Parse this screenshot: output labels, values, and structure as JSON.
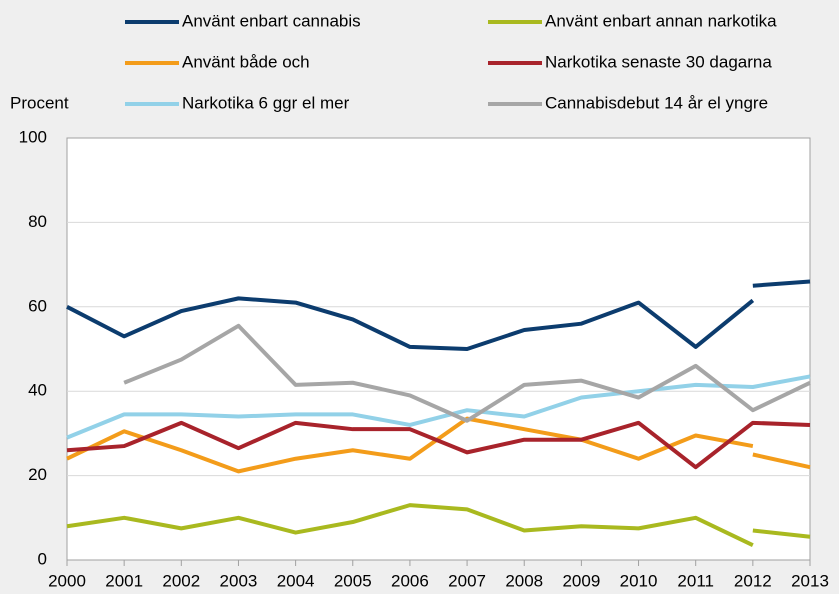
{
  "chart_data": {
    "type": "line",
    "ylabel": "Procent",
    "ylim": [
      0,
      100
    ],
    "yticks": [
      0,
      20,
      40,
      60,
      80,
      100
    ],
    "xlim": [
      2000,
      2013
    ],
    "xticks": [
      2000,
      2001,
      2002,
      2003,
      2004,
      2005,
      2006,
      2007,
      2008,
      2009,
      2010,
      2011,
      2012,
      2013
    ],
    "grid": true,
    "series": [
      {
        "name": "Använt enbart cannabis",
        "color": "#0c3c6e",
        "x": [
          2000,
          2001,
          2002,
          2003,
          2004,
          2005,
          2006,
          2007,
          2008,
          2009,
          2010,
          2011,
          2012,
          2012,
          2012,
          2013
        ],
        "values": [
          60,
          53,
          59,
          62,
          61,
          57,
          50.5,
          50,
          54.5,
          56,
          61,
          50.5,
          61.5,
          null,
          65,
          66
        ]
      },
      {
        "name": "Använt enbart annan narkotika",
        "color": "#a9b91f",
        "x": [
          2000,
          2001,
          2002,
          2003,
          2004,
          2005,
          2006,
          2007,
          2008,
          2009,
          2010,
          2011,
          2012,
          2012,
          2012,
          2013
        ],
        "values": [
          8,
          10,
          7.5,
          10,
          6.5,
          9,
          13,
          12,
          7,
          8,
          7.5,
          10,
          3.5,
          null,
          7,
          5.5
        ]
      },
      {
        "name": "Använt både och",
        "color": "#f39c1a",
        "x": [
          2000,
          2001,
          2002,
          2003,
          2004,
          2005,
          2006,
          2007,
          2008,
          2009,
          2010,
          2011,
          2012,
          2012,
          2012,
          2013
        ],
        "values": [
          24,
          30.5,
          26,
          21,
          24,
          26,
          24,
          33.5,
          31,
          28.5,
          24,
          29.5,
          27,
          null,
          25,
          22
        ]
      },
      {
        "name": "Narkotika senaste 30 dagarna",
        "color": "#a8232b",
        "x": [
          2000,
          2001,
          2002,
          2003,
          2004,
          2005,
          2006,
          2007,
          2008,
          2009,
          2010,
          2011,
          2012,
          2013
        ],
        "values": [
          26,
          27,
          32.5,
          26.5,
          32.5,
          31,
          31,
          25.5,
          28.5,
          28.5,
          32.5,
          22,
          32.5,
          32
        ]
      },
      {
        "name": "Narkotika 6 ggr el mer",
        "color": "#92d1e8",
        "x": [
          2000,
          2001,
          2002,
          2003,
          2004,
          2005,
          2006,
          2007,
          2008,
          2009,
          2010,
          2011,
          2012,
          2013
        ],
        "values": [
          29,
          34.5,
          34.5,
          34,
          34.5,
          34.5,
          32,
          35.5,
          34,
          38.5,
          40,
          41.5,
          41,
          43.5
        ]
      },
      {
        "name": "Cannabisdebut 14 år el yngre",
        "color": "#a6a6a6",
        "x": [
          2000,
          2001,
          2002,
          2003,
          2004,
          2005,
          2006,
          2007,
          2008,
          2009,
          2010,
          2011,
          2012,
          2013
        ],
        "values": [
          null,
          42,
          47.5,
          55.5,
          41.5,
          42,
          39,
          33,
          41.5,
          42.5,
          38.5,
          46,
          35.5,
          42
        ]
      }
    ]
  }
}
